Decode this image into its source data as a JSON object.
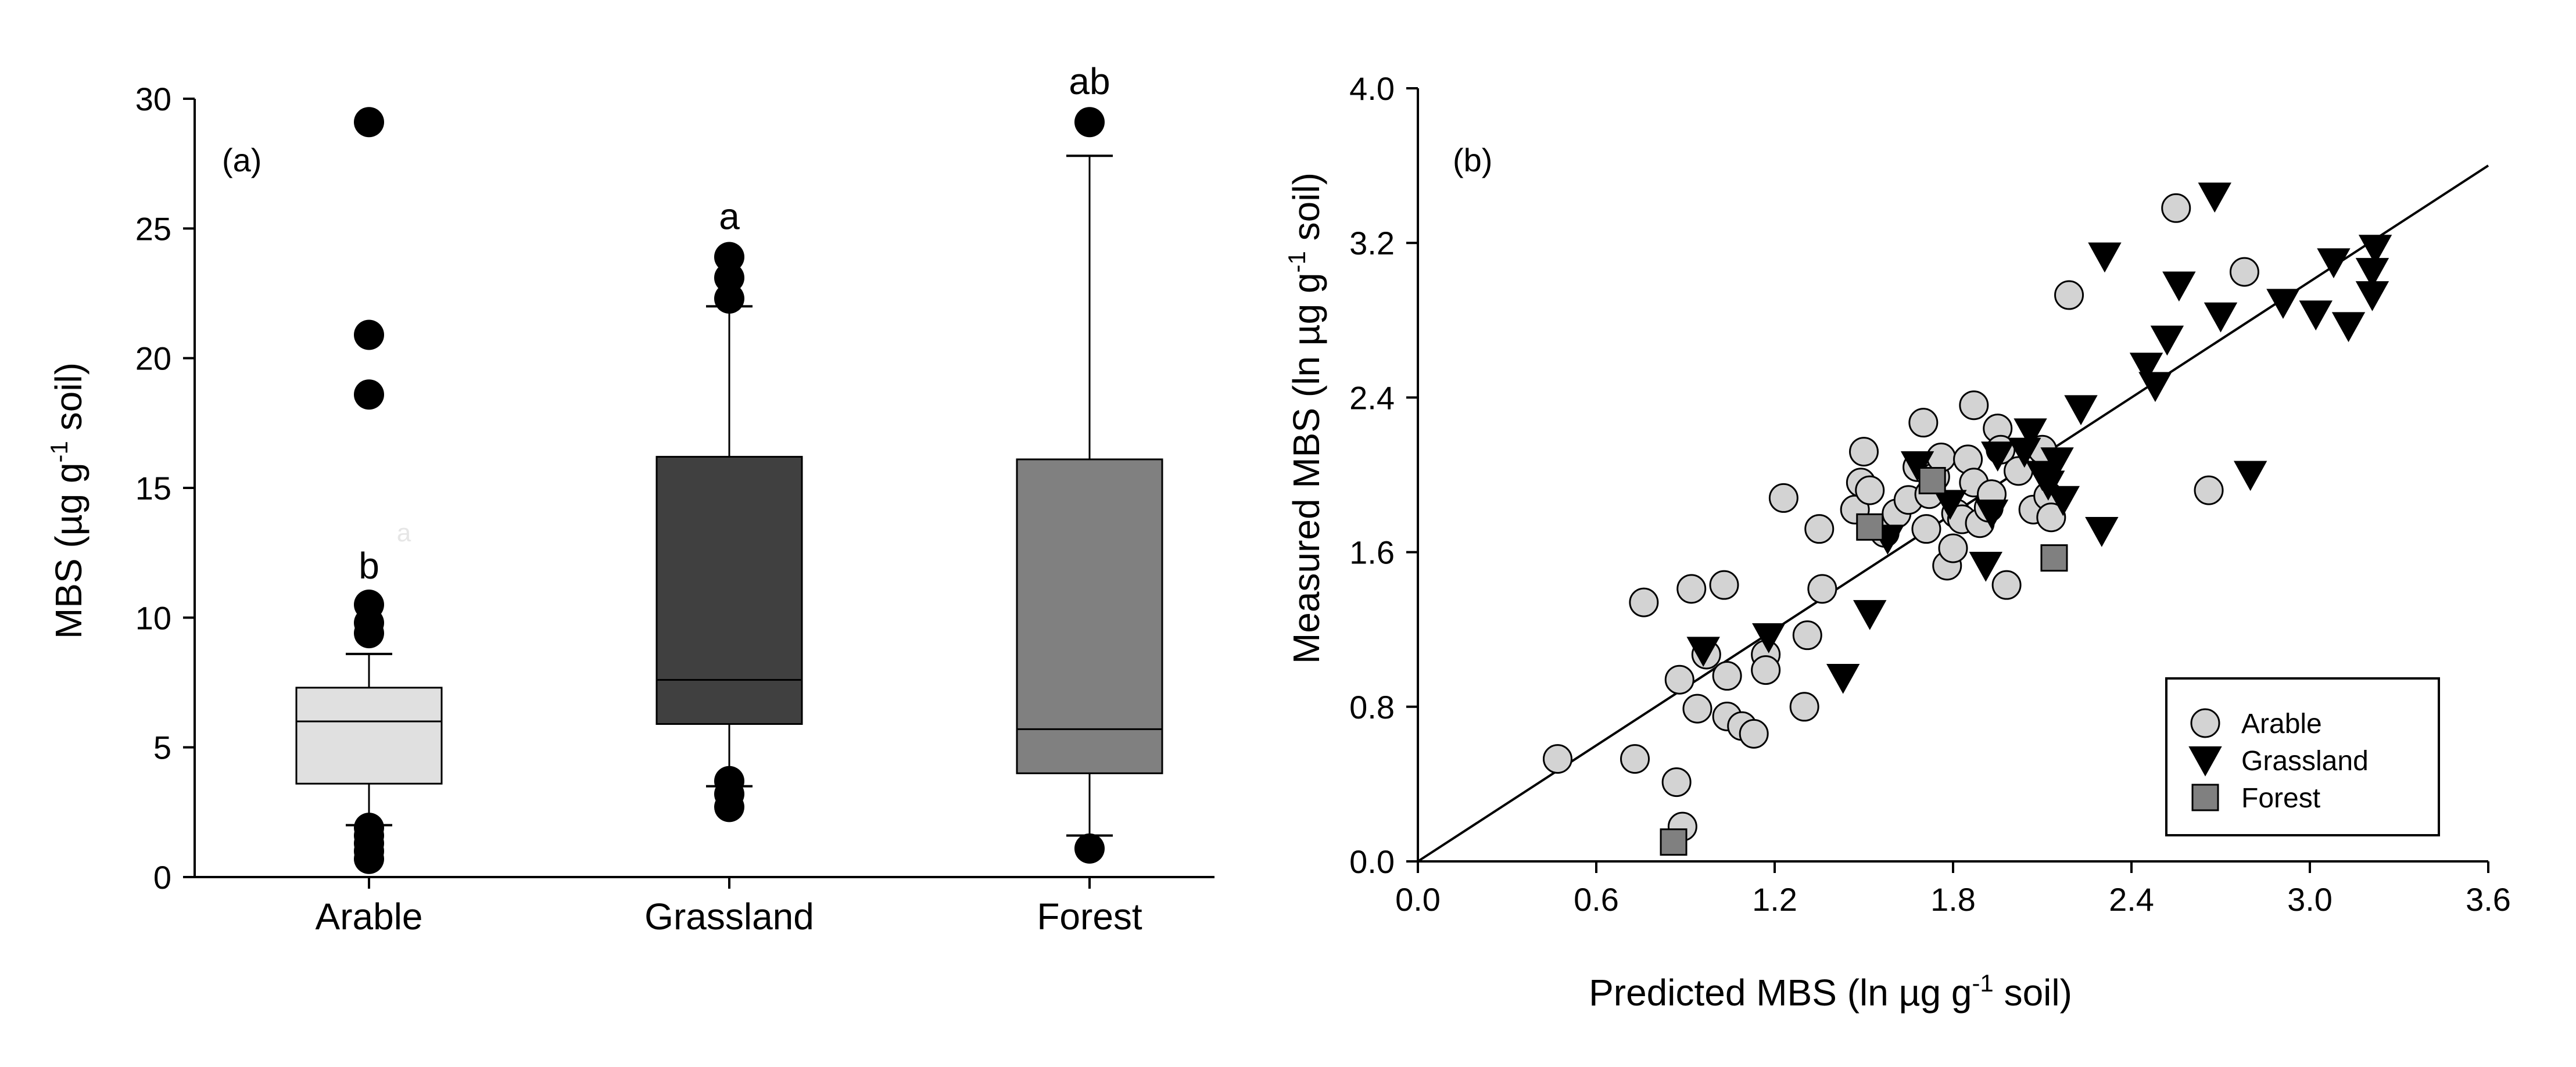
{
  "chart_data": [
    {
      "type": "box",
      "panel_label": "(a)",
      "ylabel": "MBS (µg g",
      "ylabel_sup": "-1",
      "ylabel_tail": " soil)",
      "ylim": [
        0,
        30
      ],
      "yticks": [
        "0",
        "5",
        "10",
        "15",
        "20",
        "25",
        "30"
      ],
      "categories": [
        "Arable",
        "Grassland",
        "Forest"
      ],
      "boxes": [
        {
          "name": "Arable",
          "color": "#e0e0e0",
          "sig": "b",
          "whisker_low": 2.0,
          "q1": 3.6,
          "median": 6.0,
          "q3": 7.3,
          "whisker_high": 8.6,
          "outliers": [
            29.1,
            20.9,
            18.6,
            10.5,
            9.8,
            9.4,
            1.9,
            1.6,
            1.3,
            1.0,
            0.7
          ]
        },
        {
          "name": "Grassland",
          "color": "#404040",
          "sig": "a",
          "whisker_low": 3.5,
          "q1": 5.9,
          "median": 7.6,
          "q3": 16.2,
          "whisker_high": 22.0,
          "outliers": [
            23.9,
            23.1,
            22.3,
            3.7,
            3.2,
            2.7
          ]
        },
        {
          "name": "Forest",
          "color": "#808080",
          "sig": "ab",
          "whisker_low": 1.6,
          "q1": 4.0,
          "median": 5.7,
          "q3": 16.1,
          "whisker_high": 27.8,
          "outliers": [
            29.1,
            1.1
          ]
        }
      ],
      "faint_label": "a"
    },
    {
      "type": "scatter",
      "panel_label": "(b)",
      "xlabel": "Predicted MBS (ln µg g",
      "xlabel_sup": "-1",
      "xlabel_tail": " soil)",
      "ylabel": "Measured MBS (ln µg g",
      "ylabel_sup": "-1",
      "ylabel_tail": " soil)",
      "xlim": [
        0,
        3.6
      ],
      "ylim": [
        0,
        4.0
      ],
      "xticks": [
        "0.0",
        "0.6",
        "1.2",
        "1.8",
        "2.4",
        "3.0",
        "3.6"
      ],
      "yticks": [
        "0.0",
        "0.8",
        "1.6",
        "2.4",
        "3.2",
        "4.0"
      ],
      "fit_line": {
        "x": [
          0,
          3.6
        ],
        "y": [
          0,
          3.6
        ]
      },
      "legend": [
        {
          "label": "Arable",
          "marker": "circle",
          "color": "#d3d3d3"
        },
        {
          "label": "Grassland",
          "marker": "triangle-down",
          "color": "#000000"
        },
        {
          "label": "Forest",
          "marker": "square",
          "color": "#808080"
        }
      ],
      "series": [
        {
          "name": "Arable",
          "marker": "circle",
          "color": "#d3d3d3",
          "points": [
            [
              0.47,
              0.53
            ],
            [
              0.73,
              0.53
            ],
            [
              0.76,
              1.34
            ],
            [
              0.87,
              0.41
            ],
            [
              0.88,
              0.94
            ],
            [
              0.89,
              0.18
            ],
            [
              0.92,
              1.41
            ],
            [
              0.94,
              0.79
            ],
            [
              0.97,
              1.07
            ],
            [
              1.03,
              1.43
            ],
            [
              1.04,
              0.75
            ],
            [
              1.04,
              0.96
            ],
            [
              1.09,
              0.7
            ],
            [
              1.13,
              0.66
            ],
            [
              1.17,
              1.07
            ],
            [
              1.17,
              0.99
            ],
            [
              1.23,
              1.88
            ],
            [
              1.3,
              0.8
            ],
            [
              1.31,
              1.17
            ],
            [
              1.35,
              1.72
            ],
            [
              1.36,
              1.41
            ],
            [
              1.47,
              1.82
            ],
            [
              1.49,
              1.96
            ],
            [
              1.5,
              2.12
            ],
            [
              1.52,
              1.92
            ],
            [
              1.57,
              1.7
            ],
            [
              1.61,
              1.8
            ],
            [
              1.65,
              1.87
            ],
            [
              1.68,
              2.04
            ],
            [
              1.7,
              2.27
            ],
            [
              1.71,
              1.72
            ],
            [
              1.72,
              1.9
            ],
            [
              1.74,
              1.99
            ],
            [
              1.76,
              2.09
            ],
            [
              1.78,
              1.53
            ],
            [
              1.8,
              1.62
            ],
            [
              1.81,
              1.8
            ],
            [
              1.83,
              1.77
            ],
            [
              1.85,
              2.08
            ],
            [
              1.87,
              1.96
            ],
            [
              1.87,
              2.36
            ],
            [
              1.89,
              1.75
            ],
            [
              1.92,
              1.83
            ],
            [
              1.93,
              1.9
            ],
            [
              1.95,
              2.24
            ],
            [
              1.96,
              2.13
            ],
            [
              1.98,
              1.43
            ],
            [
              2.02,
              2.02
            ],
            [
              2.07,
              1.82
            ],
            [
              2.1,
              2.13
            ],
            [
              2.12,
              1.89
            ],
            [
              2.13,
              1.78
            ],
            [
              2.19,
              2.93
            ],
            [
              2.55,
              3.38
            ],
            [
              2.66,
              1.92
            ],
            [
              2.78,
              3.05
            ]
          ]
        },
        {
          "name": "Grassland",
          "marker": "triangle-down",
          "color": "#000000",
          "points": [
            [
              0.96,
              1.09
            ],
            [
              1.18,
              1.16
            ],
            [
              1.43,
              0.95
            ],
            [
              1.52,
              1.28
            ],
            [
              1.58,
              1.67
            ],
            [
              1.68,
              2.05
            ],
            [
              1.79,
              1.85
            ],
            [
              1.91,
              1.53
            ],
            [
              1.93,
              1.8
            ],
            [
              1.95,
              2.1
            ],
            [
              2.04,
              2.12
            ],
            [
              2.06,
              2.22
            ],
            [
              2.1,
              2.0
            ],
            [
              2.12,
              1.95
            ],
            [
              2.15,
              2.07
            ],
            [
              2.17,
              1.87
            ],
            [
              2.23,
              2.34
            ],
            [
              2.3,
              1.71
            ],
            [
              2.31,
              3.13
            ],
            [
              2.45,
              2.56
            ],
            [
              2.48,
              2.46
            ],
            [
              2.52,
              2.7
            ],
            [
              2.56,
              2.98
            ],
            [
              2.68,
              3.44
            ],
            [
              2.7,
              2.82
            ],
            [
              2.8,
              2.0
            ],
            [
              2.91,
              2.89
            ],
            [
              3.02,
              2.83
            ],
            [
              3.08,
              3.1
            ],
            [
              3.13,
              2.77
            ],
            [
              3.21,
              2.93
            ],
            [
              3.21,
              3.05
            ],
            [
              3.22,
              3.17
            ]
          ]
        },
        {
          "name": "Forest",
          "marker": "square",
          "color": "#808080",
          "points": [
            [
              0.86,
              0.1
            ],
            [
              1.52,
              1.73
            ],
            [
              1.73,
              1.97
            ],
            [
              2.14,
              1.57
            ]
          ]
        }
      ]
    }
  ]
}
